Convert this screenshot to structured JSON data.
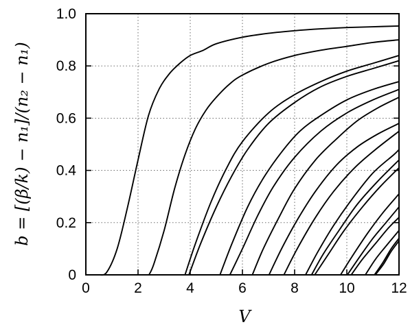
{
  "chart_data": {
    "type": "line",
    "xlabel": "V",
    "ylabel": "b = [(β/k) − n₁]/(n₂ − n₁)",
    "xlim": [
      0,
      12
    ],
    "ylim": [
      0,
      1.0
    ],
    "grid": true,
    "x_ticks": [
      {
        "value": 0,
        "label": "0"
      },
      {
        "value": 2,
        "label": "2"
      },
      {
        "value": 4,
        "label": "4"
      },
      {
        "value": 6,
        "label": "6"
      },
      {
        "value": 8,
        "label": "8"
      },
      {
        "value": 10,
        "label": "10"
      },
      {
        "value": 12,
        "label": "12"
      }
    ],
    "y_ticks": [
      {
        "value": 0,
        "label": "0"
      },
      {
        "value": 0.2,
        "label": "0.2"
      },
      {
        "value": 0.4,
        "label": "0.4"
      },
      {
        "value": 0.6,
        "label": "0.6"
      },
      {
        "value": 0.8,
        "label": "0.8"
      },
      {
        "value": 1.0,
        "label": "1.0"
      }
    ],
    "series": [
      {
        "x": [
          0.5,
          0.8,
          1.2,
          1.6,
          2.0,
          2.4,
          2.8,
          3.2,
          3.6,
          4.0,
          4.5,
          5.0,
          6.0,
          7.0,
          8.0,
          9.0,
          10.0,
          11.0,
          12.0
        ],
        "y": [
          0.0,
          0.01,
          0.1,
          0.26,
          0.44,
          0.61,
          0.71,
          0.77,
          0.81,
          0.84,
          0.86,
          0.885,
          0.91,
          0.925,
          0.935,
          0.942,
          0.947,
          0.95,
          0.953
        ]
      },
      {
        "x": [
          2.42,
          2.6,
          3.0,
          3.4,
          3.8,
          4.2,
          4.6,
          5.0,
          5.5,
          6.0,
          7.0,
          8.0,
          9.0,
          10.0,
          11.0,
          12.0
        ],
        "y": [
          0.0,
          0.04,
          0.17,
          0.33,
          0.46,
          0.56,
          0.63,
          0.68,
          0.73,
          0.765,
          0.81,
          0.84,
          0.86,
          0.875,
          0.89,
          0.9
        ]
      },
      {
        "x": [
          3.8,
          4.2,
          4.8,
          5.4,
          6.0,
          7.0,
          8.0,
          9.0,
          10.0,
          11.0,
          12.0
        ],
        "y": [
          0.0,
          0.12,
          0.28,
          0.41,
          0.51,
          0.62,
          0.69,
          0.74,
          0.78,
          0.81,
          0.84
        ]
      },
      {
        "x": [
          3.95,
          4.4,
          5.0,
          5.6,
          6.2,
          7.0,
          8.0,
          9.0,
          10.0,
          11.0,
          12.0
        ],
        "y": [
          0.0,
          0.12,
          0.26,
          0.38,
          0.48,
          0.58,
          0.66,
          0.72,
          0.76,
          0.79,
          0.82
        ]
      },
      {
        "x": [
          5.14,
          5.6,
          6.2,
          6.8,
          7.5,
          8.2,
          9.0,
          10.0,
          11.0,
          12.0
        ],
        "y": [
          0.0,
          0.12,
          0.26,
          0.37,
          0.47,
          0.55,
          0.61,
          0.67,
          0.71,
          0.74
        ]
      },
      {
        "x": [
          5.52,
          6.0,
          6.6,
          7.2,
          8.0,
          9.0,
          10.0,
          11.0,
          12.0
        ],
        "y": [
          0.0,
          0.1,
          0.23,
          0.34,
          0.45,
          0.55,
          0.62,
          0.67,
          0.71
        ]
      },
      {
        "x": [
          6.38,
          6.8,
          7.4,
          8.0,
          8.8,
          9.6,
          10.4,
          11.2,
          12.0
        ],
        "y": [
          0.0,
          0.1,
          0.22,
          0.33,
          0.44,
          0.52,
          0.59,
          0.64,
          0.68
        ]
      },
      {
        "x": [
          7.02,
          7.5,
          8.1,
          8.8,
          9.6,
          10.4,
          11.2,
          12.0
        ],
        "y": [
          0.0,
          0.1,
          0.21,
          0.32,
          0.42,
          0.49,
          0.54,
          0.58
        ]
      },
      {
        "x": [
          7.59,
          8.1,
          8.8,
          9.5,
          10.3,
          11.1,
          12.0
        ],
        "y": [
          0.0,
          0.1,
          0.22,
          0.32,
          0.41,
          0.48,
          0.55
        ]
      },
      {
        "x": [
          8.42,
          8.9,
          9.5,
          10.2,
          11.0,
          11.8,
          12.0
        ],
        "y": [
          0.0,
          0.09,
          0.19,
          0.29,
          0.39,
          0.46,
          0.48
        ]
      },
      {
        "x": [
          8.65,
          9.1,
          9.7,
          10.4,
          11.2,
          12.0
        ],
        "y": [
          0.0,
          0.08,
          0.17,
          0.27,
          0.36,
          0.44
        ]
      },
      {
        "x": [
          8.77,
          9.3,
          9.9,
          10.6,
          11.3,
          12.0
        ],
        "y": [
          0.0,
          0.08,
          0.17,
          0.26,
          0.34,
          0.41
        ]
      },
      {
        "x": [
          9.76,
          10.2,
          10.8,
          11.4,
          12.0
        ],
        "y": [
          0.0,
          0.07,
          0.16,
          0.24,
          0.31
        ]
      },
      {
        "x": [
          10.02,
          10.5,
          11.0,
          11.5,
          12.0
        ],
        "y": [
          0.0,
          0.07,
          0.14,
          0.2,
          0.26
        ]
      },
      {
        "x": [
          10.17,
          10.6,
          11.1,
          11.6,
          12.0
        ],
        "y": [
          0.0,
          0.06,
          0.12,
          0.18,
          0.22
        ]
      },
      {
        "x": [
          10.71,
          11.1,
          11.5,
          12.0
        ],
        "y": [
          0.0,
          0.06,
          0.11,
          0.17
        ]
      },
      {
        "x": [
          11.06,
          11.4,
          11.7,
          12.0
        ],
        "y": [
          0.0,
          0.05,
          0.1,
          0.14
        ]
      },
      {
        "x": [
          11.09,
          11.4,
          11.7,
          12.0
        ],
        "y": [
          0.0,
          0.04,
          0.09,
          0.13
        ]
      }
    ]
  }
}
